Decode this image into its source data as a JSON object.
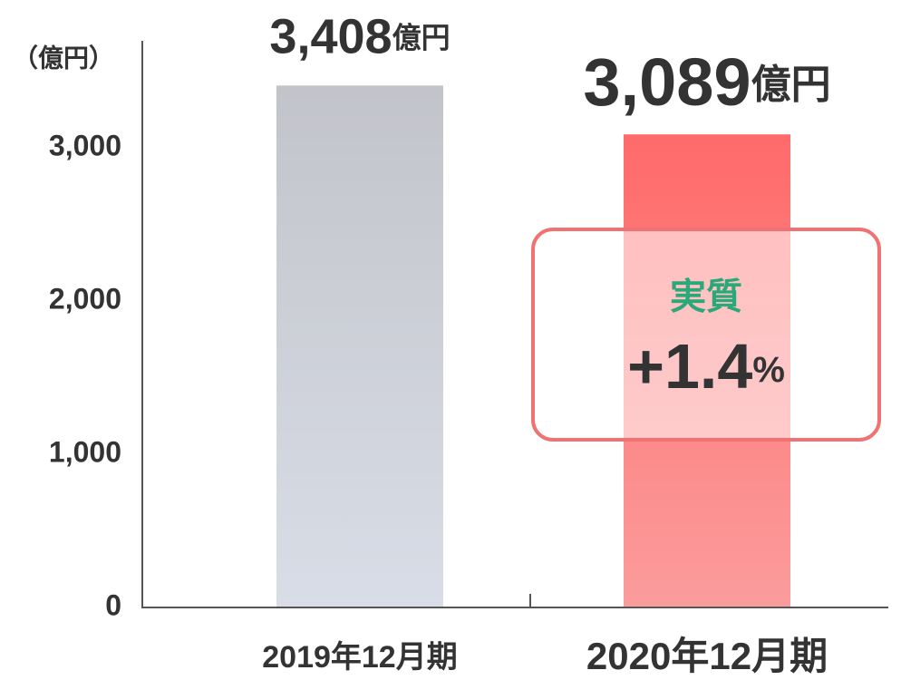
{
  "chart_data": {
    "type": "bar",
    "y_unit_label": "（億円）",
    "categories": [
      "2019年12月期",
      "2020年12月期"
    ],
    "values": [
      3408,
      3089
    ],
    "value_labels": [
      "3,408",
      "3,089"
    ],
    "value_unit": "億円",
    "colors": [
      [
        "#c2c4ca",
        "#d9dde7"
      ],
      [
        "#ff6a6a",
        "#fb9c9c"
      ]
    ],
    "ylim": [
      0,
      3700
    ],
    "yticks": [
      0,
      {
        "value": 1000,
        "label": "1,000"
      },
      {
        "value": 2000,
        "label": "2,000"
      },
      {
        "value": 3000,
        "label": "3,000"
      }
    ],
    "grid": false,
    "annotation": {
      "title": "実質",
      "text": "+1.4",
      "unit": "%"
    }
  }
}
